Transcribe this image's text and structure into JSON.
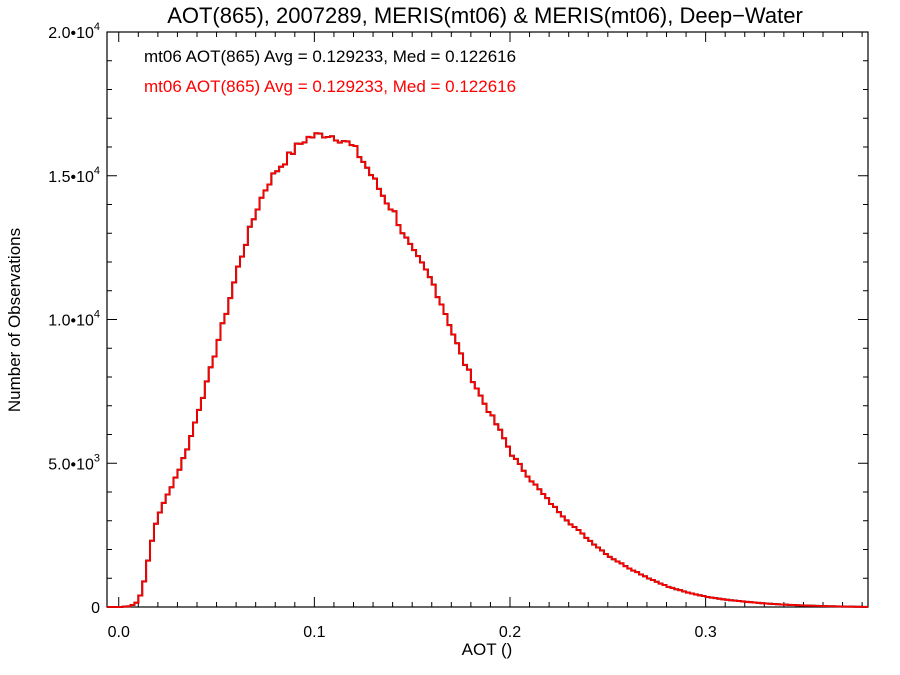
{
  "chart_data": {
    "type": "line",
    "style": "histogram-step",
    "title": "AOT(865), 2007289, MERIS(mt06) & MERIS(mt06), Deep−Water",
    "xlabel": "AOT ()",
    "ylabel": "Number of Observations",
    "xlim": [
      -0.006,
      0.383
    ],
    "ylim": [
      0,
      20000
    ],
    "x_ticks": [
      {
        "value": 0.0,
        "label": "0.0"
      },
      {
        "value": 0.1,
        "label": "0.1"
      },
      {
        "value": 0.2,
        "label": "0.2"
      },
      {
        "value": 0.3,
        "label": "0.3"
      }
    ],
    "y_ticks": [
      {
        "value": 0,
        "mantissa": "0",
        "exponent": ""
      },
      {
        "value": 5000,
        "mantissa": "5.0•10",
        "exponent": "3"
      },
      {
        "value": 10000,
        "mantissa": "1.0•10",
        "exponent": "4"
      },
      {
        "value": 15000,
        "mantissa": "1.5•10",
        "exponent": "4"
      },
      {
        "value": 20000,
        "mantissa": "2.0•10",
        "exponent": "4"
      }
    ],
    "annotations": [
      {
        "text": "mt06 AOT(865) Avg = 0.129233, Med = 0.122616",
        "color": "#000000"
      },
      {
        "text": "mt06 AOT(865) Avg = 0.129233, Med = 0.122616",
        "color": "#ff0000"
      }
    ],
    "grid": false,
    "bin_width": 0.002,
    "series": [
      {
        "color": "#000000",
        "x": [
          0.0,
          0.005,
          0.008,
          0.01,
          0.012,
          0.014,
          0.016,
          0.018,
          0.02,
          0.022,
          0.024,
          0.026,
          0.028,
          0.03,
          0.035,
          0.04,
          0.045,
          0.05,
          0.055,
          0.06,
          0.065,
          0.07,
          0.075,
          0.08,
          0.085,
          0.09,
          0.095,
          0.1,
          0.105,
          0.11,
          0.115,
          0.12,
          0.125,
          0.13,
          0.135,
          0.14,
          0.145,
          0.15,
          0.155,
          0.16,
          0.165,
          0.17,
          0.175,
          0.18,
          0.185,
          0.19,
          0.195,
          0.2,
          0.21,
          0.22,
          0.23,
          0.24,
          0.25,
          0.26,
          0.27,
          0.28,
          0.29,
          0.3,
          0.31,
          0.32,
          0.33,
          0.34,
          0.35,
          0.36,
          0.37,
          0.38
        ],
        "values": [
          0,
          30,
          150,
          400,
          900,
          1600,
          2300,
          2900,
          3300,
          3600,
          3900,
          4200,
          4500,
          4800,
          5700,
          6900,
          8000,
          9300,
          10500,
          11800,
          12900,
          13900,
          14700,
          15200,
          15600,
          16000,
          16300,
          16400,
          16450,
          16350,
          16200,
          15900,
          15400,
          14800,
          14200,
          13700,
          12900,
          12300,
          11800,
          11200,
          10400,
          9500,
          8600,
          7900,
          7200,
          6600,
          6000,
          5300,
          4400,
          3600,
          2900,
          2300,
          1750,
          1350,
          1000,
          700,
          500,
          350,
          250,
          180,
          120,
          80,
          50,
          30,
          15,
          5
        ]
      },
      {
        "color": "#ff0000",
        "x": [
          0.0,
          0.005,
          0.008,
          0.01,
          0.012,
          0.014,
          0.016,
          0.018,
          0.02,
          0.022,
          0.024,
          0.026,
          0.028,
          0.03,
          0.035,
          0.04,
          0.045,
          0.05,
          0.055,
          0.06,
          0.065,
          0.07,
          0.075,
          0.08,
          0.085,
          0.09,
          0.095,
          0.1,
          0.105,
          0.11,
          0.115,
          0.12,
          0.125,
          0.13,
          0.135,
          0.14,
          0.145,
          0.15,
          0.155,
          0.16,
          0.165,
          0.17,
          0.175,
          0.18,
          0.185,
          0.19,
          0.195,
          0.2,
          0.21,
          0.22,
          0.23,
          0.24,
          0.25,
          0.26,
          0.27,
          0.28,
          0.29,
          0.3,
          0.31,
          0.32,
          0.33,
          0.34,
          0.35,
          0.36,
          0.37,
          0.38
        ],
        "values": [
          0,
          30,
          150,
          400,
          900,
          1600,
          2300,
          2900,
          3300,
          3600,
          3900,
          4200,
          4500,
          4800,
          5700,
          6900,
          8000,
          9300,
          10500,
          11800,
          12900,
          13900,
          14700,
          15200,
          15600,
          16000,
          16300,
          16400,
          16450,
          16350,
          16200,
          15900,
          15400,
          14800,
          14200,
          13700,
          12900,
          12300,
          11800,
          11200,
          10400,
          9500,
          8600,
          7900,
          7200,
          6600,
          6000,
          5300,
          4400,
          3600,
          2900,
          2300,
          1750,
          1350,
          1000,
          700,
          500,
          350,
          250,
          180,
          120,
          80,
          50,
          30,
          15,
          5
        ]
      }
    ]
  }
}
